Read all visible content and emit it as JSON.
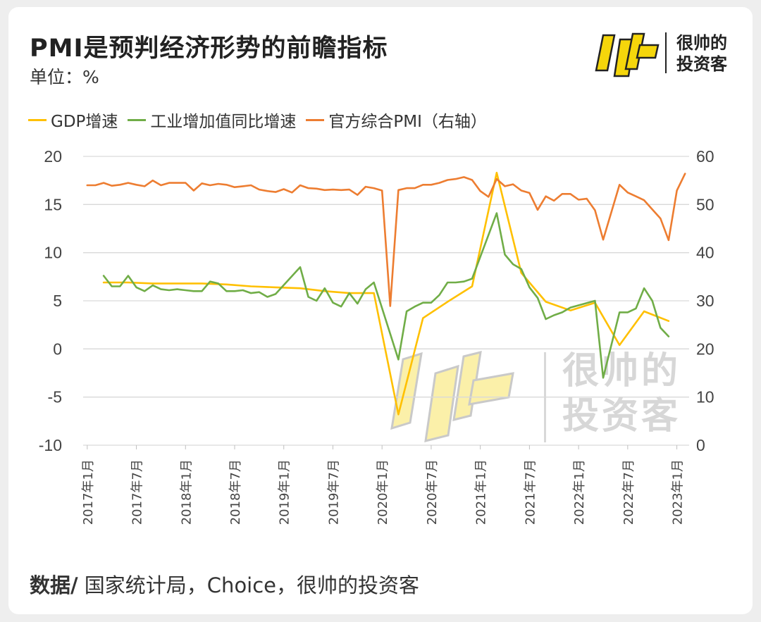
{
  "header": {
    "title": "PMI是预判经济形势的前瞻指标",
    "unit": "单位：%"
  },
  "brand": {
    "name_line1": "很帅的",
    "name_line2": "投资客"
  },
  "source": {
    "label": "数据/",
    "text": " 国家统计局，Choice，很帅的投资客"
  },
  "colors": {
    "gdp": "#FFC000",
    "industrial": "#70AD47",
    "pmi": "#ED7D31",
    "logo_yellow": "#F5D60B"
  },
  "chart_data": {
    "type": "line",
    "x_tick_labels": [
      "2017年1月",
      "2017年7月",
      "2018年1月",
      "2018年7月",
      "2019年1月",
      "2019年7月",
      "2020年1月",
      "2020年7月",
      "2021年1月",
      "2021年7月",
      "2022年1月",
      "2022年7月",
      "2023年1月"
    ],
    "ylim_left": [
      -10,
      20
    ],
    "ylim_right": [
      0,
      60
    ],
    "y_ticks_left": [
      "20",
      "15",
      "10",
      "5",
      "0",
      "-5",
      "-10"
    ],
    "y_ticks_right": [
      "60",
      "50",
      "40",
      "30",
      "20",
      "10",
      "0"
    ],
    "legend": [
      "GDP增速",
      "工业增加值同比增速",
      "官方综合PMI（右轴）"
    ],
    "series": [
      {
        "name": "GDP增速",
        "axis": "left",
        "points": [
          [
            2,
            6.9
          ],
          [
            5,
            6.9
          ],
          [
            8,
            6.8
          ],
          [
            11,
            6.8
          ],
          [
            14,
            6.8
          ],
          [
            17,
            6.7
          ],
          [
            20,
            6.5
          ],
          [
            23,
            6.4
          ],
          [
            26,
            6.3
          ],
          [
            29,
            6.0
          ],
          [
            32,
            5.8
          ],
          [
            35,
            5.8
          ],
          [
            38,
            -6.8
          ],
          [
            41,
            3.2
          ],
          [
            44,
            4.9
          ],
          [
            47,
            6.5
          ],
          [
            50,
            18.3
          ],
          [
            53,
            7.9
          ],
          [
            56,
            4.9
          ],
          [
            59,
            4.0
          ],
          [
            62,
            4.8
          ],
          [
            65,
            0.4
          ],
          [
            68,
            3.9
          ],
          [
            71,
            2.9
          ]
        ]
      },
      {
        "name": "工业增加值同比增速",
        "axis": "left",
        "points": [
          [
            2,
            7.6
          ],
          [
            3,
            6.5
          ],
          [
            4,
            6.5
          ],
          [
            5,
            7.6
          ],
          [
            6,
            6.4
          ],
          [
            7,
            6.0
          ],
          [
            8,
            6.6
          ],
          [
            9,
            6.2
          ],
          [
            10,
            6.1
          ],
          [
            11,
            6.2
          ],
          [
            12,
            6.1
          ],
          [
            13,
            6.0
          ],
          [
            14,
            6.0
          ],
          [
            15,
            7.0
          ],
          [
            16,
            6.8
          ],
          [
            17,
            6.0
          ],
          [
            18,
            6.0
          ],
          [
            19,
            6.1
          ],
          [
            20,
            5.8
          ],
          [
            21,
            5.9
          ],
          [
            22,
            5.4
          ],
          [
            23,
            5.7
          ],
          [
            26,
            8.5
          ],
          [
            27,
            5.4
          ],
          [
            28,
            5.0
          ],
          [
            29,
            6.3
          ],
          [
            30,
            4.8
          ],
          [
            31,
            4.4
          ],
          [
            32,
            5.8
          ],
          [
            33,
            4.7
          ],
          [
            34,
            6.2
          ],
          [
            35,
            6.9
          ],
          [
            38,
            -1.1
          ],
          [
            39,
            3.9
          ],
          [
            40,
            4.4
          ],
          [
            41,
            4.8
          ],
          [
            42,
            4.8
          ],
          [
            43,
            5.6
          ],
          [
            44,
            6.9
          ],
          [
            45,
            6.9
          ],
          [
            46,
            7.0
          ],
          [
            47,
            7.3
          ],
          [
            50,
            14.1
          ],
          [
            51,
            9.8
          ],
          [
            52,
            8.8
          ],
          [
            53,
            8.3
          ],
          [
            54,
            6.4
          ],
          [
            55,
            5.3
          ],
          [
            56,
            3.1
          ],
          [
            57,
            3.5
          ],
          [
            58,
            3.8
          ],
          [
            59,
            4.3
          ],
          [
            62,
            5.0
          ],
          [
            63,
            -3.0
          ],
          [
            65,
            3.8
          ],
          [
            66,
            3.8
          ],
          [
            67,
            4.2
          ],
          [
            68,
            6.3
          ],
          [
            69,
            5.0
          ],
          [
            70,
            2.2
          ],
          [
            71,
            1.3
          ]
        ]
      },
      {
        "name": "官方综合PMI（右轴）",
        "axis": "right",
        "points": [
          [
            0,
            54.0
          ],
          [
            1,
            54.0
          ],
          [
            2,
            54.5
          ],
          [
            3,
            53.9
          ],
          [
            4,
            54.1
          ],
          [
            5,
            54.5
          ],
          [
            6,
            54.1
          ],
          [
            7,
            53.8
          ],
          [
            8,
            55.0
          ],
          [
            9,
            54.0
          ],
          [
            10,
            54.5
          ],
          [
            11,
            54.5
          ],
          [
            12,
            54.5
          ],
          [
            13,
            52.9
          ],
          [
            14,
            54.4
          ],
          [
            15,
            54.0
          ],
          [
            16,
            54.3
          ],
          [
            17,
            54.1
          ],
          [
            18,
            53.6
          ],
          [
            19,
            53.8
          ],
          [
            20,
            54.0
          ],
          [
            21,
            53.1
          ],
          [
            22,
            52.8
          ],
          [
            23,
            52.6
          ],
          [
            24,
            53.2
          ],
          [
            25,
            52.5
          ],
          [
            26,
            54.0
          ],
          [
            27,
            53.4
          ],
          [
            28,
            53.3
          ],
          [
            29,
            53.0
          ],
          [
            30,
            53.1
          ],
          [
            31,
            53.0
          ],
          [
            32,
            53.1
          ],
          [
            33,
            52.0
          ],
          [
            34,
            53.7
          ],
          [
            35,
            53.4
          ],
          [
            36,
            52.9
          ],
          [
            37,
            28.9
          ],
          [
            38,
            53.0
          ],
          [
            39,
            53.4
          ],
          [
            40,
            53.4
          ],
          [
            41,
            54.1
          ],
          [
            42,
            54.1
          ],
          [
            43,
            54.5
          ],
          [
            44,
            55.1
          ],
          [
            45,
            55.3
          ],
          [
            46,
            55.7
          ],
          [
            47,
            55.1
          ],
          [
            48,
            52.8
          ],
          [
            49,
            51.6
          ],
          [
            50,
            55.3
          ],
          [
            51,
            53.8
          ],
          [
            52,
            54.2
          ],
          [
            53,
            52.9
          ],
          [
            54,
            52.4
          ],
          [
            55,
            48.9
          ],
          [
            56,
            51.7
          ],
          [
            57,
            50.8
          ],
          [
            58,
            52.2
          ],
          [
            59,
            52.2
          ],
          [
            60,
            51.0
          ],
          [
            61,
            51.2
          ],
          [
            62,
            48.8
          ],
          [
            63,
            42.7
          ],
          [
            65,
            54.1
          ],
          [
            66,
            52.5
          ],
          [
            67,
            51.7
          ],
          [
            68,
            50.9
          ],
          [
            69,
            49.0
          ],
          [
            70,
            47.1
          ],
          [
            71,
            42.6
          ],
          [
            72,
            52.9
          ],
          [
            73,
            56.4
          ]
        ]
      }
    ]
  }
}
